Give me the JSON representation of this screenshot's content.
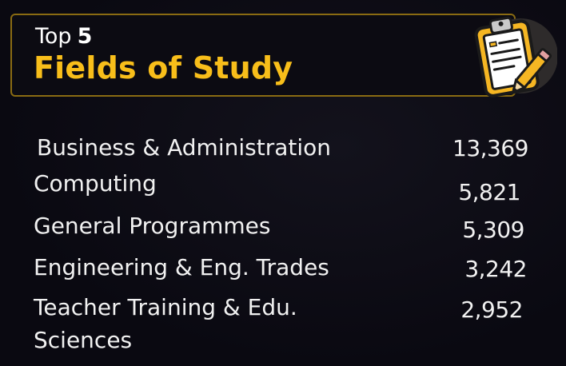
{
  "header": {
    "top_label": "Top",
    "top_number": "5",
    "title": "Fields of Study",
    "icon": "clipboard-pencil-icon",
    "accent_color": "#f8be1a",
    "border_color": "#8a6b12"
  },
  "rows": [
    {
      "label": "Business & Administration",
      "value": "13,369"
    },
    {
      "label": "Computing",
      "value": "5,821"
    },
    {
      "label": "General Programmes",
      "value": "5,309"
    },
    {
      "label": "Engineering & Eng. Trades",
      "value": "3,242"
    },
    {
      "label_line1": "Teacher Training & Edu.",
      "label_line2": "Sciences",
      "value": "2,952"
    }
  ]
}
